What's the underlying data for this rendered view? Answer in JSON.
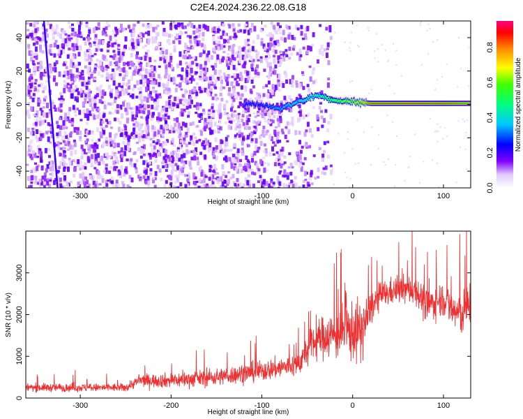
{
  "title": "C2E4.2024.236.22.08.G18",
  "colors": {
    "snr_line": "#f03030",
    "spectrogram_low": "#8000ff",
    "background": "#ffffff"
  },
  "chart_data": [
    {
      "type": "heatmap",
      "title": "",
      "xlabel": "Height of straight line (km)",
      "ylabel": "Frequency (Hz)",
      "xlim": [
        -360,
        130
      ],
      "ylim": [
        -50,
        50
      ],
      "xticks": [
        -300,
        -200,
        -100,
        0,
        100
      ],
      "yticks": [
        -40,
        -20,
        0,
        20,
        40
      ],
      "colorbar": {
        "label": "Normalized spectral amplitude",
        "range": [
          0.0,
          0.95
        ],
        "ticks": [
          0.0,
          0.2,
          0.4,
          0.6,
          0.8
        ],
        "palette": "rainbow (white → violet → blue → cyan → green → yellow → red → magenta)"
      },
      "features": {
        "noise_region_x": [
          -360,
          -25
        ],
        "carrier_trace": [
          {
            "x": -120,
            "freq": 1,
            "amplitude": 0.3
          },
          {
            "x": -100,
            "freq": 0,
            "amplitude": 0.3
          },
          {
            "x": -80,
            "freq": -2,
            "amplitude": 0.4
          },
          {
            "x": -60,
            "freq": 2,
            "amplitude": 0.45
          },
          {
            "x": -40,
            "freq": 6,
            "amplitude": 0.5
          },
          {
            "x": -20,
            "freq": 3,
            "amplitude": 0.6
          },
          {
            "x": 0,
            "freq": 2,
            "amplitude": 0.7
          },
          {
            "x": 20,
            "freq": 1,
            "amplitude": 0.9
          },
          {
            "x": 60,
            "freq": 1,
            "amplitude": 0.92
          },
          {
            "x": 100,
            "freq": 1,
            "amplitude": 0.9
          },
          {
            "x": 130,
            "freq": 1,
            "amplitude": 0.85
          }
        ],
        "diagonal_streak_x": [
          -340,
          -325
        ]
      }
    },
    {
      "type": "line",
      "title": "",
      "xlabel": "Height of straight line (km)",
      "ylabel": "SNR (10 * v/v)",
      "xlim": [
        -360,
        130
      ],
      "ylim": [
        0,
        4000
      ],
      "xticks": [
        -300,
        -200,
        -100,
        0,
        100
      ],
      "yticks": [
        0,
        1000,
        2000,
        3000
      ],
      "series": [
        {
          "x": [
            -360,
            -300,
            -250,
            -235,
            -200,
            -150,
            -100,
            -60,
            -45,
            -30,
            -20,
            -10,
            0,
            10,
            20,
            30,
            50,
            70,
            80,
            100,
            110,
            120,
            130
          ],
          "y": [
            250,
            250,
            250,
            420,
            420,
            500,
            650,
            800,
            1300,
            1500,
            1500,
            1600,
            1600,
            1600,
            2150,
            2450,
            2600,
            2600,
            2200,
            2400,
            2100,
            2000,
            2300
          ],
          "spread": [
            120,
            120,
            120,
            180,
            220,
            250,
            300,
            350,
            500,
            650,
            700,
            800,
            900,
            900,
            500,
            400,
            400,
            450,
            500,
            500,
            600,
            650,
            700
          ]
        }
      ]
    }
  ]
}
